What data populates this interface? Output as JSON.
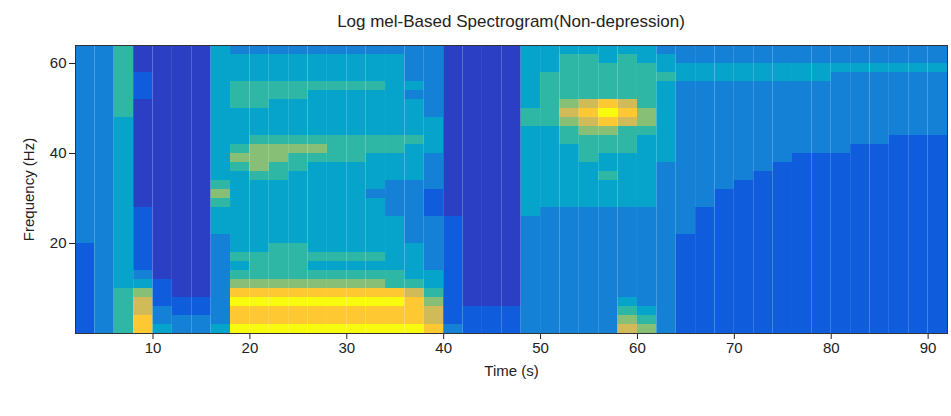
{
  "chart_data": {
    "type": "heatmap",
    "title": "Log mel-Based Spectrogram(Non-depression)",
    "x_label": "Time (s)",
    "y_label": "Frequency (Hz)",
    "xlim": [
      2,
      92
    ],
    "ylim": [
      0,
      64
    ],
    "xticks": [
      10,
      20,
      30,
      40,
      50,
      60,
      70,
      80,
      90
    ],
    "yticks": [
      20,
      40,
      60
    ],
    "color": "parula",
    "clim": [
      0,
      9
    ],
    "x": [
      3,
      5,
      7,
      9,
      11,
      13,
      15,
      17,
      19,
      21,
      23,
      25,
      27,
      29,
      31,
      33,
      35,
      37,
      39,
      41,
      43,
      45,
      47,
      49,
      51,
      53,
      55,
      57,
      59,
      61,
      63,
      65,
      67,
      69,
      71,
      73,
      75,
      77,
      79,
      81,
      83,
      85,
      87,
      89,
      91
    ],
    "y": [
      1,
      3,
      5,
      7,
      9,
      11,
      13,
      15,
      17,
      19,
      21,
      23,
      25,
      27,
      29,
      31,
      33,
      35,
      37,
      39,
      41,
      43,
      45,
      47,
      49,
      51,
      53,
      55,
      57,
      59,
      61,
      63
    ],
    "values": [
      [
        2,
        3,
        5,
        8,
        4,
        3,
        3,
        4,
        9,
        9,
        9,
        9,
        9,
        9,
        9,
        9,
        9,
        9,
        8,
        3,
        2,
        2,
        2,
        3,
        3,
        3,
        3,
        3,
        7,
        6,
        3,
        2,
        2,
        2,
        2,
        2,
        2,
        2,
        2,
        2,
        2,
        2,
        2,
        2,
        2
      ],
      [
        2,
        3,
        5,
        8,
        3,
        3,
        3,
        3,
        8,
        8,
        8,
        8,
        8,
        8,
        8,
        8,
        8,
        8,
        7,
        2,
        2,
        2,
        2,
        3,
        3,
        3,
        3,
        3,
        6,
        5,
        3,
        2,
        2,
        2,
        2,
        2,
        2,
        2,
        2,
        2,
        2,
        2,
        2,
        2,
        2
      ],
      [
        2,
        3,
        5,
        7,
        3,
        2,
        2,
        3,
        8,
        8,
        8,
        8,
        8,
        8,
        8,
        8,
        8,
        8,
        7,
        2,
        2,
        2,
        2,
        3,
        3,
        3,
        3,
        3,
        5,
        4,
        3,
        2,
        2,
        2,
        2,
        2,
        2,
        2,
        2,
        2,
        2,
        2,
        2,
        2,
        2
      ],
      [
        2,
        3,
        5,
        7,
        2,
        2,
        2,
        3,
        9,
        9,
        9,
        9,
        9,
        9,
        9,
        9,
        9,
        8,
        6,
        2,
        1,
        1,
        1,
        3,
        3,
        3,
        3,
        3,
        4,
        3,
        3,
        2,
        2,
        2,
        2,
        2,
        2,
        2,
        2,
        2,
        2,
        2,
        2,
        2,
        2
      ],
      [
        2,
        3,
        5,
        6,
        2,
        1,
        1,
        3,
        8,
        8,
        8,
        8,
        8,
        8,
        8,
        8,
        8,
        7,
        5,
        2,
        1,
        1,
        1,
        3,
        3,
        3,
        3,
        3,
        3,
        3,
        3,
        2,
        2,
        2,
        2,
        2,
        2,
        2,
        2,
        2,
        2,
        2,
        2,
        2,
        2
      ],
      [
        2,
        3,
        4,
        4,
        2,
        1,
        1,
        3,
        6,
        6,
        6,
        6,
        6,
        6,
        6,
        6,
        5,
        5,
        4,
        2,
        1,
        1,
        1,
        3,
        3,
        3,
        3,
        3,
        3,
        3,
        3,
        2,
        2,
        2,
        2,
        2,
        2,
        2,
        2,
        2,
        2,
        2,
        2,
        2,
        2
      ],
      [
        2,
        3,
        4,
        3,
        1,
        1,
        1,
        3,
        5,
        5,
        5,
        5,
        5,
        5,
        5,
        5,
        5,
        4,
        4,
        2,
        1,
        1,
        1,
        3,
        3,
        3,
        3,
        3,
        3,
        3,
        3,
        2,
        2,
        2,
        2,
        2,
        2,
        2,
        2,
        2,
        2,
        2,
        2,
        2,
        2
      ],
      [
        2,
        3,
        4,
        2,
        1,
        1,
        1,
        3,
        4,
        5,
        5,
        5,
        4,
        4,
        4,
        4,
        4,
        4,
        3,
        2,
        1,
        1,
        1,
        3,
        3,
        3,
        3,
        3,
        3,
        3,
        3,
        2,
        2,
        2,
        2,
        2,
        2,
        2,
        2,
        2,
        2,
        2,
        2,
        2,
        2
      ],
      [
        2,
        3,
        4,
        2,
        1,
        1,
        1,
        3,
        5,
        5,
        5,
        5,
        5,
        5,
        5,
        5,
        4,
        4,
        3,
        2,
        1,
        1,
        1,
        3,
        3,
        3,
        3,
        3,
        3,
        3,
        3,
        2,
        2,
        2,
        2,
        2,
        2,
        2,
        2,
        2,
        2,
        2,
        2,
        2,
        2
      ],
      [
        2,
        3,
        4,
        2,
        1,
        1,
        1,
        3,
        4,
        4,
        5,
        5,
        4,
        4,
        4,
        4,
        4,
        4,
        3,
        2,
        1,
        1,
        1,
        3,
        3,
        3,
        3,
        3,
        3,
        3,
        3,
        2,
        2,
        2,
        2,
        2,
        2,
        2,
        2,
        2,
        2,
        2,
        2,
        2,
        2
      ],
      [
        3,
        3,
        4,
        2,
        1,
        1,
        1,
        3,
        4,
        4,
        4,
        4,
        4,
        4,
        4,
        4,
        4,
        3,
        3,
        2,
        1,
        1,
        1,
        3,
        3,
        3,
        3,
        3,
        3,
        3,
        3,
        2,
        2,
        2,
        2,
        2,
        2,
        2,
        2,
        2,
        2,
        2,
        2,
        2,
        2
      ],
      [
        3,
        3,
        4,
        2,
        1,
        1,
        1,
        4,
        4,
        4,
        4,
        4,
        4,
        4,
        4,
        4,
        4,
        3,
        3,
        2,
        1,
        1,
        1,
        3,
        3,
        3,
        3,
        3,
        3,
        3,
        3,
        3,
        2,
        2,
        2,
        2,
        2,
        2,
        2,
        2,
        2,
        2,
        2,
        2,
        2
      ],
      [
        3,
        3,
        4,
        2,
        1,
        1,
        1,
        4,
        4,
        4,
        4,
        4,
        4,
        4,
        4,
        4,
        4,
        3,
        3,
        2,
        1,
        1,
        1,
        3,
        3,
        3,
        3,
        3,
        3,
        3,
        3,
        3,
        2,
        2,
        2,
        2,
        2,
        2,
        2,
        2,
        2,
        2,
        2,
        2,
        2
      ],
      [
        3,
        3,
        4,
        2,
        1,
        1,
        1,
        4,
        4,
        4,
        4,
        4,
        4,
        4,
        4,
        4,
        3,
        3,
        2,
        1,
        1,
        1,
        1,
        4,
        3,
        3,
        3,
        3,
        3,
        3,
        3,
        3,
        2,
        2,
        2,
        2,
        2,
        2,
        2,
        2,
        2,
        2,
        2,
        2,
        2
      ],
      [
        3,
        3,
        4,
        1,
        1,
        1,
        1,
        5,
        4,
        4,
        4,
        4,
        4,
        4,
        4,
        4,
        3,
        3,
        2,
        1,
        1,
        1,
        1,
        4,
        4,
        4,
        4,
        4,
        4,
        4,
        3,
        3,
        3,
        2,
        2,
        2,
        2,
        2,
        2,
        2,
        2,
        2,
        2,
        2,
        2
      ],
      [
        3,
        3,
        4,
        1,
        1,
        1,
        1,
        6,
        4,
        4,
        4,
        4,
        4,
        4,
        4,
        3,
        3,
        3,
        2,
        1,
        1,
        1,
        1,
        4,
        4,
        4,
        4,
        4,
        4,
        4,
        3,
        3,
        3,
        2,
        2,
        2,
        2,
        2,
        2,
        2,
        2,
        2,
        2,
        2,
        2
      ],
      [
        3,
        3,
        4,
        1,
        1,
        1,
        1,
        5,
        4,
        4,
        4,
        4,
        4,
        4,
        4,
        4,
        3,
        3,
        3,
        1,
        1,
        1,
        1,
        4,
        4,
        4,
        4,
        4,
        4,
        4,
        3,
        3,
        3,
        3,
        2,
        2,
        2,
        2,
        2,
        2,
        2,
        2,
        2,
        2,
        2
      ],
      [
        3,
        3,
        4,
        1,
        1,
        1,
        1,
        4,
        4,
        5,
        5,
        4,
        4,
        4,
        4,
        4,
        4,
        4,
        3,
        1,
        1,
        1,
        1,
        4,
        4,
        4,
        4,
        5,
        4,
        4,
        3,
        3,
        3,
        3,
        3,
        2,
        2,
        2,
        2,
        2,
        2,
        2,
        2,
        2,
        2
      ],
      [
        3,
        3,
        4,
        1,
        1,
        1,
        1,
        4,
        5,
        6,
        5,
        5,
        4,
        4,
        4,
        4,
        4,
        4,
        3,
        1,
        1,
        1,
        1,
        4,
        4,
        4,
        4,
        4,
        4,
        4,
        3,
        3,
        3,
        3,
        3,
        3,
        2,
        2,
        2,
        2,
        2,
        2,
        2,
        2,
        2
      ],
      [
        3,
        3,
        4,
        1,
        1,
        1,
        1,
        4,
        6,
        6,
        6,
        5,
        5,
        5,
        5,
        4,
        4,
        4,
        3,
        1,
        1,
        1,
        1,
        4,
        4,
        4,
        5,
        4,
        4,
        4,
        4,
        3,
        3,
        3,
        3,
        3,
        3,
        2,
        2,
        2,
        2,
        2,
        2,
        2,
        2
      ],
      [
        3,
        3,
        4,
        1,
        1,
        1,
        1,
        4,
        5,
        6,
        6,
        6,
        6,
        5,
        5,
        5,
        5,
        4,
        4,
        1,
        1,
        1,
        1,
        4,
        4,
        4,
        5,
        5,
        5,
        4,
        4,
        3,
        3,
        3,
        3,
        3,
        3,
        3,
        3,
        3,
        2,
        2,
        2,
        2,
        2
      ],
      [
        3,
        3,
        4,
        1,
        1,
        1,
        1,
        4,
        4,
        5,
        5,
        5,
        5,
        5,
        5,
        5,
        5,
        5,
        4,
        1,
        1,
        1,
        1,
        4,
        4,
        5,
        5,
        5,
        5,
        4,
        4,
        3,
        3,
        3,
        3,
        3,
        3,
        3,
        3,
        3,
        3,
        3,
        2,
        2,
        2
      ],
      [
        3,
        3,
        4,
        1,
        1,
        1,
        1,
        4,
        4,
        4,
        4,
        4,
        4,
        4,
        4,
        4,
        4,
        4,
        4,
        1,
        1,
        1,
        1,
        4,
        4,
        5,
        6,
        6,
        5,
        5,
        4,
        3,
        3,
        3,
        3,
        3,
        3,
        3,
        3,
        3,
        3,
        3,
        3,
        3,
        3
      ],
      [
        3,
        3,
        4,
        1,
        1,
        1,
        1,
        4,
        4,
        4,
        4,
        4,
        4,
        4,
        4,
        4,
        4,
        4,
        4,
        1,
        1,
        1,
        1,
        5,
        5,
        6,
        7,
        8,
        7,
        6,
        4,
        3,
        3,
        3,
        3,
        3,
        3,
        3,
        3,
        3,
        3,
        3,
        3,
        3,
        3
      ],
      [
        3,
        3,
        5,
        1,
        1,
        1,
        1,
        4,
        4,
        4,
        4,
        4,
        4,
        4,
        4,
        4,
        4,
        4,
        3,
        1,
        1,
        1,
        1,
        5,
        5,
        7,
        8,
        9,
        8,
        6,
        4,
        3,
        3,
        3,
        3,
        3,
        3,
        3,
        3,
        3,
        3,
        3,
        3,
        3,
        3
      ],
      [
        3,
        3,
        5,
        1,
        1,
        1,
        1,
        4,
        5,
        5,
        4,
        4,
        4,
        4,
        4,
        4,
        4,
        4,
        3,
        1,
        1,
        1,
        1,
        4,
        5,
        6,
        7,
        8,
        7,
        5,
        4,
        3,
        3,
        3,
        3,
        3,
        3,
        3,
        3,
        3,
        3,
        3,
        3,
        3,
        3
      ],
      [
        3,
        3,
        5,
        2,
        1,
        1,
        1,
        4,
        5,
        5,
        5,
        5,
        4,
        4,
        4,
        4,
        4,
        3,
        3,
        1,
        1,
        1,
        1,
        4,
        5,
        5,
        5,
        5,
        5,
        5,
        4,
        3,
        3,
        3,
        3,
        3,
        3,
        3,
        3,
        3,
        3,
        3,
        3,
        3,
        3
      ],
      [
        3,
        3,
        5,
        2,
        1,
        1,
        1,
        4,
        5,
        5,
        5,
        5,
        5,
        5,
        5,
        5,
        4,
        4,
        3,
        1,
        1,
        1,
        1,
        4,
        5,
        5,
        5,
        5,
        5,
        5,
        4,
        3,
        3,
        3,
        3,
        3,
        3,
        3,
        3,
        3,
        3,
        3,
        3,
        3,
        3
      ],
      [
        3,
        3,
        5,
        2,
        1,
        1,
        1,
        4,
        4,
        4,
        4,
        4,
        4,
        4,
        4,
        4,
        4,
        3,
        3,
        1,
        1,
        1,
        1,
        4,
        5,
        5,
        5,
        5,
        5,
        5,
        5,
        4,
        4,
        4,
        4,
        4,
        4,
        4,
        4,
        3,
        3,
        3,
        3,
        3,
        3
      ],
      [
        3,
        3,
        5,
        1,
        1,
        1,
        1,
        4,
        4,
        4,
        4,
        4,
        4,
        4,
        4,
        4,
        4,
        3,
        3,
        1,
        1,
        1,
        1,
        4,
        4,
        5,
        5,
        5,
        5,
        5,
        4,
        4,
        4,
        4,
        4,
        4,
        4,
        4,
        4,
        4,
        4,
        4,
        4,
        4,
        4
      ],
      [
        3,
        3,
        5,
        1,
        1,
        1,
        1,
        4,
        4,
        4,
        4,
        4,
        4,
        4,
        4,
        4,
        4,
        3,
        3,
        1,
        1,
        1,
        1,
        4,
        4,
        5,
        5,
        4,
        5,
        4,
        4,
        3,
        3,
        3,
        3,
        3,
        3,
        3,
        3,
        3,
        3,
        3,
        3,
        3,
        3
      ],
      [
        3,
        3,
        5,
        1,
        1,
        1,
        1,
        4,
        3,
        3,
        3,
        3,
        3,
        3,
        3,
        3,
        3,
        3,
        3,
        1,
        1,
        1,
        1,
        4,
        4,
        4,
        4,
        4,
        4,
        4,
        3,
        3,
        3,
        3,
        3,
        3,
        3,
        3,
        3,
        3,
        3,
        3,
        3,
        3,
        3
      ]
    ]
  }
}
